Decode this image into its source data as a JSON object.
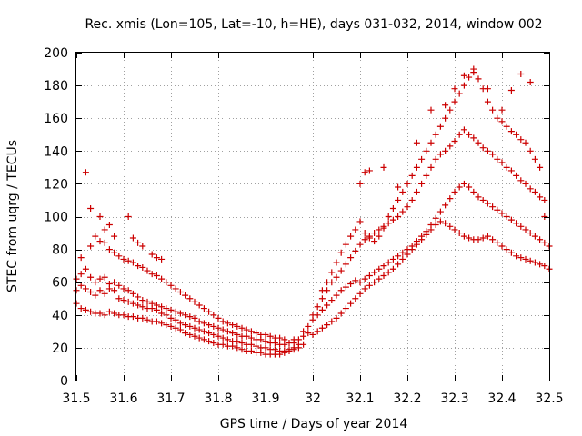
{
  "chart_data": {
    "type": "scatter",
    "title": "Rec. xmis (Lon=105, Lat=-10, h=HE), days 031-032, 2014, window 002",
    "xlabel": "GPS time / Days of year 2014",
    "ylabel": "STEC from uqrg / TECUs",
    "xlim": [
      31.5,
      32.5
    ],
    "ylim": [
      0,
      200
    ],
    "x_ticks": [
      31.5,
      31.6,
      31.7,
      31.8,
      31.9,
      32.0,
      32.1,
      32.2,
      32.3,
      32.4,
      32.5
    ],
    "x_tick_labels": [
      "31.5",
      "31.6",
      "31.7",
      "31.8",
      "31.9",
      "32",
      "32.1",
      "32.2",
      "32.3",
      "32.4",
      "32.5"
    ],
    "y_ticks": [
      0,
      20,
      40,
      60,
      80,
      100,
      120,
      140,
      160,
      180,
      200
    ],
    "y_tick_labels": [
      "0",
      "20",
      "40",
      "60",
      "80",
      "100",
      "120",
      "140",
      "160",
      "180",
      "200"
    ],
    "grid": true,
    "marker": "plus",
    "marker_color": "#cc0000",
    "series": [
      {
        "x": [
          31.5,
          31.51,
          31.52,
          31.53,
          31.54,
          31.55,
          31.56,
          31.57,
          31.58,
          31.59,
          31.6,
          31.61,
          31.62,
          31.63,
          31.64,
          31.65,
          31.66,
          31.67,
          31.68,
          31.69,
          31.7,
          31.71,
          31.72,
          31.73,
          31.74,
          31.75,
          31.76,
          31.77,
          31.78,
          31.79,
          31.8,
          31.81,
          31.82,
          31.83,
          31.84,
          31.85,
          31.86,
          31.87,
          31.88,
          31.89,
          31.9,
          31.91,
          31.92,
          31.93,
          31.94,
          31.95,
          31.96,
          31.97,
          31.98
        ],
        "y": [
          47,
          44,
          43,
          42,
          41,
          41,
          40,
          42,
          41,
          40,
          40,
          39,
          39,
          38,
          38,
          37,
          36,
          36,
          35,
          34,
          33,
          32,
          31,
          29,
          28,
          27,
          26,
          25,
          24,
          23,
          22,
          22,
          21,
          21,
          20,
          19,
          18,
          18,
          17,
          17,
          16,
          16,
          16,
          16,
          17,
          18,
          19,
          20,
          22
        ]
      },
      {
        "x": [
          31.5,
          31.51,
          31.52,
          31.53,
          31.54,
          31.55,
          31.56,
          31.57,
          31.58,
          31.59,
          31.6,
          31.61,
          31.62,
          31.63,
          31.64,
          31.65,
          31.66,
          31.67,
          31.68,
          31.69,
          31.7,
          31.71,
          31.72,
          31.73,
          31.74,
          31.75,
          31.76,
          31.77,
          31.78,
          31.79,
          31.8,
          31.81,
          31.82,
          31.83,
          31.84,
          31.85,
          31.86,
          31.87,
          31.88,
          31.89,
          31.9,
          31.91,
          31.92,
          31.93,
          31.94,
          31.95,
          31.96,
          31.97
        ],
        "y": [
          55,
          58,
          56,
          54,
          52,
          55,
          53,
          56,
          55,
          50,
          49,
          48,
          47,
          46,
          45,
          44,
          44,
          43,
          41,
          40,
          38,
          37,
          35,
          34,
          33,
          32,
          31,
          30,
          29,
          28,
          27,
          26,
          25,
          24,
          24,
          23,
          22,
          22,
          21,
          20,
          20,
          19,
          19,
          18,
          18,
          19,
          20,
          22
        ]
      },
      {
        "x": [
          31.5,
          31.51,
          31.52,
          31.53,
          31.54,
          31.55,
          31.56,
          31.57,
          31.58,
          31.59,
          31.6,
          31.61,
          31.62,
          31.63,
          31.64,
          31.65,
          31.66,
          31.67,
          31.68,
          31.69,
          31.7,
          31.71,
          31.72,
          31.73,
          31.74,
          31.75,
          31.76,
          31.77,
          31.78,
          31.79,
          31.8,
          31.81,
          31.82,
          31.83,
          31.84,
          31.85,
          31.86,
          31.87,
          31.88,
          31.89,
          31.9,
          31.91,
          31.92,
          31.93,
          31.94,
          31.95,
          31.96
        ],
        "y": [
          62,
          65,
          68,
          63,
          60,
          62,
          63,
          59,
          60,
          58,
          56,
          55,
          53,
          51,
          49,
          48,
          47,
          46,
          45,
          44,
          43,
          42,
          41,
          40,
          39,
          38,
          36,
          35,
          34,
          33,
          32,
          31,
          30,
          29,
          28,
          27,
          27,
          26,
          25,
          25,
          24,
          23,
          23,
          22,
          22,
          23,
          25
        ]
      },
      {
        "x": [
          31.51,
          31.53,
          31.54,
          31.55,
          31.56,
          31.57,
          31.58,
          31.59,
          31.6,
          31.61,
          31.62,
          31.63,
          31.64,
          31.65,
          31.66,
          31.67,
          31.68,
          31.69,
          31.7,
          31.71,
          31.72,
          31.73,
          31.74,
          31.75,
          31.76,
          31.77,
          31.78,
          31.79,
          31.8,
          31.81,
          31.82,
          31.83,
          31.84,
          31.85,
          31.86,
          31.87,
          31.88,
          31.89,
          31.9,
          31.91,
          31.92,
          31.93,
          31.94
        ],
        "y": [
          75,
          82,
          88,
          85,
          84,
          80,
          78,
          76,
          74,
          73,
          72,
          70,
          69,
          67,
          65,
          64,
          62,
          60,
          58,
          56,
          54,
          52,
          50,
          48,
          46,
          44,
          42,
          40,
          38,
          36,
          35,
          34,
          33,
          32,
          31,
          30,
          29,
          28,
          28,
          27,
          26,
          26,
          25
        ]
      },
      {
        "x": [
          31.52,
          31.53,
          31.55,
          31.56,
          31.57,
          31.58,
          31.61,
          31.62,
          31.63,
          31.64,
          31.66,
          31.67,
          31.68
        ],
        "y": [
          127,
          105,
          100,
          92,
          95,
          88,
          100,
          87,
          84,
          82,
          77,
          75,
          74
        ]
      },
      {
        "x": [
          31.96,
          31.97,
          31.98,
          31.99,
          32.0,
          32.01,
          32.02,
          32.03,
          32.04,
          32.05,
          32.06,
          32.07,
          32.08,
          32.09,
          32.1,
          32.11,
          32.12,
          32.13,
          32.14,
          32.15,
          32.16,
          32.17,
          32.18,
          32.19,
          32.2,
          32.21,
          32.22,
          32.23,
          32.24,
          32.25,
          32.26,
          32.27,
          32.28,
          32.29,
          32.3,
          32.31,
          32.32,
          32.33,
          32.34,
          32.35,
          32.36,
          32.37,
          32.38,
          32.39,
          32.4,
          32.41,
          32.42,
          32.43,
          32.44,
          32.45,
          32.46,
          32.47,
          32.48,
          32.49,
          32.5
        ],
        "y": [
          23,
          25,
          27,
          29,
          28,
          30,
          32,
          34,
          36,
          38,
          41,
          44,
          47,
          50,
          53,
          56,
          58,
          60,
          62,
          64,
          66,
          68,
          71,
          74,
          77,
          80,
          83,
          86,
          89,
          92,
          95,
          97,
          96,
          94,
          92,
          90,
          88,
          87,
          86,
          86,
          87,
          88,
          86,
          84,
          82,
          80,
          78,
          76,
          75,
          74,
          73,
          72,
          71,
          70,
          68
        ]
      },
      {
        "x": [
          31.98,
          31.99,
          32.0,
          32.01,
          32.02,
          32.03,
          32.04,
          32.05,
          32.06,
          32.07,
          32.08,
          32.09,
          32.1,
          32.11,
          32.12,
          32.13,
          32.14,
          32.15,
          32.16,
          32.17,
          32.18,
          32.19,
          32.2,
          32.21,
          32.22,
          32.23,
          32.24,
          32.25,
          32.26,
          32.27,
          32.28,
          32.29,
          32.3,
          32.31,
          32.32,
          32.33,
          32.34,
          32.35,
          32.36,
          32.37,
          32.38,
          32.39,
          32.4,
          32.41,
          32.42,
          32.43,
          32.44,
          32.45,
          32.46,
          32.47,
          32.48,
          32.49,
          32.5
        ],
        "y": [
          30,
          33,
          37,
          40,
          43,
          46,
          49,
          52,
          55,
          57,
          59,
          61,
          60,
          62,
          64,
          66,
          68,
          70,
          72,
          74,
          76,
          78,
          80,
          82,
          85,
          88,
          91,
          95,
          99,
          103,
          107,
          111,
          115,
          118,
          120,
          118,
          115,
          112,
          110,
          108,
          106,
          104,
          102,
          100,
          98,
          96,
          94,
          92,
          90,
          88,
          86,
          84,
          82
        ]
      },
      {
        "x": [
          32.0,
          32.01,
          32.02,
          32.03,
          32.04,
          32.05,
          32.06,
          32.07,
          32.08,
          32.09,
          32.1,
          32.11,
          32.12,
          32.13,
          32.14,
          32.15,
          32.16,
          32.17,
          32.18,
          32.19,
          32.2,
          32.21,
          32.22,
          32.23,
          32.24,
          32.25,
          32.26,
          32.27,
          32.28,
          32.29,
          32.3,
          32.31,
          32.32,
          32.33,
          32.34,
          32.35,
          32.36,
          32.37,
          32.38,
          32.39,
          32.4,
          32.41,
          32.42,
          32.43,
          32.44,
          32.45,
          32.46,
          32.47,
          32.48,
          32.49
        ],
        "y": [
          40,
          45,
          50,
          55,
          60,
          63,
          67,
          71,
          75,
          79,
          83,
          86,
          88,
          90,
          92,
          94,
          96,
          98,
          100,
          103,
          106,
          110,
          115,
          120,
          125,
          130,
          135,
          138,
          140,
          143,
          146,
          150,
          153,
          150,
          148,
          145,
          142,
          140,
          138,
          135,
          133,
          130,
          128,
          125,
          122,
          120,
          117,
          115,
          112,
          110
        ]
      },
      {
        "x": [
          32.02,
          32.03,
          32.04,
          32.05,
          32.06,
          32.07,
          32.08,
          32.09,
          32.1,
          32.11,
          32.12,
          32.13,
          32.14,
          32.15,
          32.16,
          32.17,
          32.18,
          32.19,
          32.2,
          32.21,
          32.22,
          32.23,
          32.24,
          32.25,
          32.26,
          32.27,
          32.28,
          32.29,
          32.3,
          32.31,
          32.32,
          32.33,
          32.34,
          32.35,
          32.36,
          32.37,
          32.38,
          32.39,
          32.4,
          32.41,
          32.42,
          32.43,
          32.44,
          32.45,
          32.46,
          32.47,
          32.48
        ],
        "y": [
          55,
          60,
          66,
          72,
          78,
          83,
          88,
          92,
          97,
          90,
          87,
          85,
          88,
          93,
          100,
          105,
          110,
          115,
          120,
          125,
          130,
          135,
          140,
          145,
          150,
          155,
          160,
          165,
          170,
          175,
          180,
          185,
          190,
          184,
          178,
          170,
          165,
          160,
          158,
          155,
          152,
          150,
          147,
          145,
          140,
          135,
          130
        ]
      },
      {
        "x": [
          32.1,
          32.11,
          32.12,
          32.15,
          32.18,
          32.22,
          32.25,
          32.28,
          32.3,
          32.32,
          32.34,
          32.37,
          32.4,
          32.42,
          32.44,
          32.46,
          32.49
        ],
        "y": [
          120,
          127,
          128,
          130,
          118,
          145,
          165,
          168,
          178,
          186,
          188,
          178,
          165,
          177,
          187,
          182,
          100
        ]
      }
    ]
  }
}
